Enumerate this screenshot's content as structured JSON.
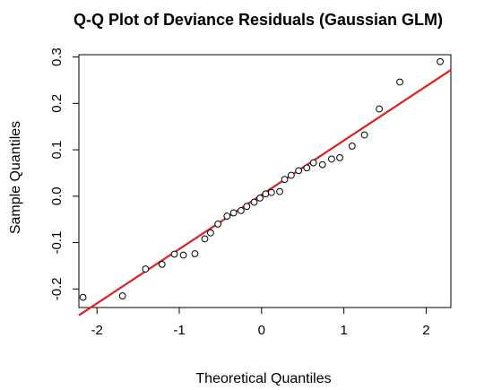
{
  "chart_data": {
    "type": "scatter",
    "title": "Q-Q Plot of Deviance Residuals (Gaussian GLM)",
    "xlabel": "Theoretical Quantiles",
    "ylabel": "Sample Quantiles",
    "xlim": [
      -2.22,
      2.3
    ],
    "ylim": [
      -0.24,
      0.305
    ],
    "x_ticks": [
      -2,
      -1,
      0,
      1,
      2
    ],
    "x_tick_labels": [
      "-2",
      "-1",
      "0",
      "1",
      "2"
    ],
    "y_ticks": [
      -0.2,
      -0.1,
      0.0,
      0.1,
      0.2,
      0.3
    ],
    "y_tick_labels": [
      "-0.2",
      "-0.1",
      "0.0",
      "0.1",
      "0.2",
      "0.3"
    ],
    "grid": false,
    "point_color": "#000000",
    "line_color": "#dd2020",
    "points": [
      [
        -2.17,
        -0.218
      ],
      [
        -1.69,
        -0.215
      ],
      [
        -1.41,
        -0.157
      ],
      [
        -1.21,
        -0.147
      ],
      [
        -1.06,
        -0.125
      ],
      [
        -0.95,
        -0.127
      ],
      [
        -0.81,
        -0.124
      ],
      [
        -0.69,
        -0.092
      ],
      [
        -0.62,
        -0.079
      ],
      [
        -0.53,
        -0.06
      ],
      [
        -0.42,
        -0.043
      ],
      [
        -0.34,
        -0.036
      ],
      [
        -0.25,
        -0.031
      ],
      [
        -0.18,
        -0.022
      ],
      [
        -0.09,
        -0.013
      ],
      [
        -0.02,
        -0.004
      ],
      [
        0.05,
        0.005
      ],
      [
        0.12,
        0.008
      ],
      [
        0.22,
        0.01
      ],
      [
        0.28,
        0.036
      ],
      [
        0.36,
        0.045
      ],
      [
        0.45,
        0.055
      ],
      [
        0.55,
        0.061
      ],
      [
        0.63,
        0.072
      ],
      [
        0.74,
        0.068
      ],
      [
        0.85,
        0.08
      ],
      [
        0.95,
        0.083
      ],
      [
        1.1,
        0.108
      ],
      [
        1.25,
        0.132
      ],
      [
        1.43,
        0.188
      ],
      [
        1.68,
        0.246
      ],
      [
        2.17,
        0.29
      ]
    ],
    "reference_line": {
      "intercept": 0.003,
      "slope": 0.117
    }
  }
}
